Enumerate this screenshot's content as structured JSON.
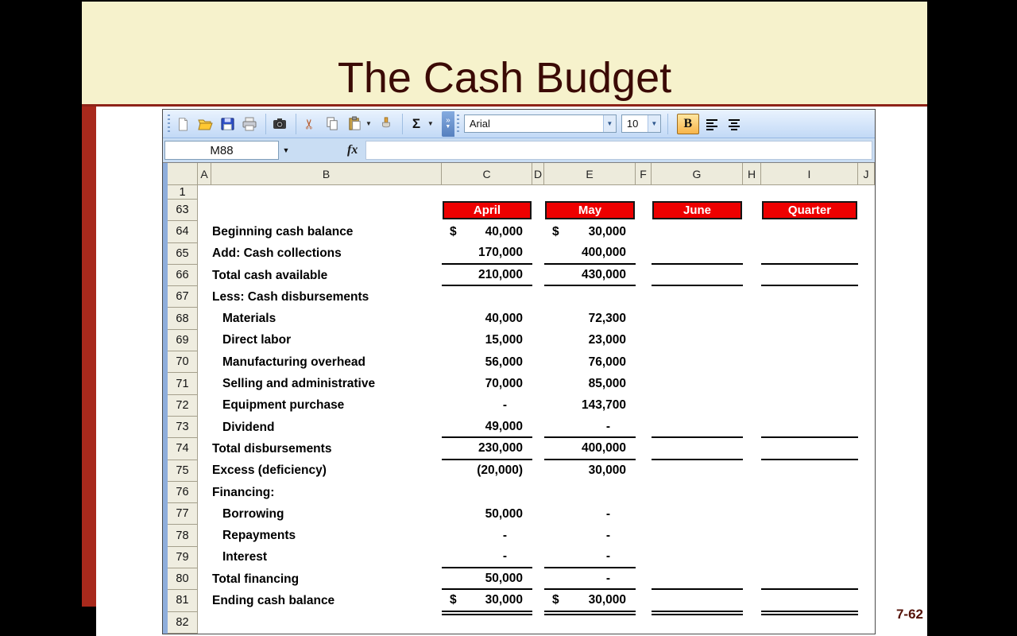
{
  "slide": {
    "title": "The Cash Budget",
    "page_number": "7-62"
  },
  "excel": {
    "name_box": "M88",
    "formula_bar_value": "",
    "toolbar": {
      "font_name": "Arial",
      "font_size": "10",
      "bold_label": "B",
      "autosum_label": "Σ",
      "cut_glyph": "✂",
      "fx_label": "fx",
      "overflow_top": "»",
      "dropdown_glyph": "▼"
    }
  },
  "sheet": {
    "columns": [
      "A",
      "B",
      "C",
      "D",
      "E",
      "F",
      "G",
      "H",
      "I",
      "J"
    ],
    "first_row_label": "1",
    "month_headers": [
      "April",
      "May",
      "June",
      "Quarter"
    ],
    "rows": [
      {
        "n": "63",
        "type": "months"
      },
      {
        "n": "64",
        "label": "Beginning cash balance",
        "cp": "$",
        "c": "40,000",
        "ep": "$",
        "e": "30,000"
      },
      {
        "n": "65",
        "label": "Add: Cash collections",
        "c": "170,000",
        "e": "400,000",
        "u": "cegi"
      },
      {
        "n": "66",
        "label": "Total cash available",
        "c": "210,000",
        "e": "430,000",
        "u": "cegi"
      },
      {
        "n": "67",
        "label": "Less: Cash disbursements"
      },
      {
        "n": "68",
        "label": "Materials",
        "indent": true,
        "c": "40,000",
        "e": "72,300"
      },
      {
        "n": "69",
        "label": "Direct labor",
        "indent": true,
        "c": "15,000",
        "e": "23,000"
      },
      {
        "n": "70",
        "label": "Manufacturing overhead",
        "indent": true,
        "c": "56,000",
        "e": "76,000"
      },
      {
        "n": "71",
        "label": "Selling and administrative",
        "indent": true,
        "c": "70,000",
        "e": "85,000"
      },
      {
        "n": "72",
        "label": "Equipment purchase",
        "indent": true,
        "c": "-",
        "e": "143,700"
      },
      {
        "n": "73",
        "label": "Dividend",
        "indent": true,
        "c": "49,000",
        "e": "-",
        "u": "cegi"
      },
      {
        "n": "74",
        "label": "Total disbursements",
        "c": "230,000",
        "e": "400,000",
        "u": "cegi"
      },
      {
        "n": "75",
        "label": "Excess (deficiency)",
        "c": "(20,000)",
        "e": "30,000"
      },
      {
        "n": "76",
        "label": "Financing:"
      },
      {
        "n": "77",
        "label": "Borrowing",
        "indent": true,
        "c": "50,000",
        "e": "-"
      },
      {
        "n": "78",
        "label": "Repayments",
        "indent": true,
        "c": "-",
        "e": "-"
      },
      {
        "n": "79",
        "label": "Interest",
        "indent": true,
        "c": "-",
        "e": "-",
        "u": "ce"
      },
      {
        "n": "80",
        "label": "Total financing",
        "c": "50,000",
        "e": "-",
        "u": "cegi"
      },
      {
        "n": "81",
        "label": "Ending cash balance",
        "cp": "$",
        "c": "30,000",
        "ep": "$",
        "e": "30,000",
        "u": "cegi",
        "dbl": true
      },
      {
        "n": "82",
        "label": ""
      }
    ]
  },
  "colors": {
    "header_red": "#EE0000",
    "accent_bar": "#A8291C",
    "title_text": "#3B0A05",
    "band_cream": "#F6F2CC"
  }
}
